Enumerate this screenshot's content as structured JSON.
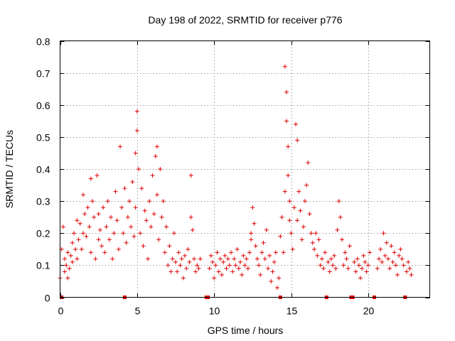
{
  "chart_data": {
    "type": "scatter",
    "title": "Day 198 of 2022, SRMTID for receiver p776",
    "xlabel": "GPS time / hours",
    "ylabel": "SRMTID / TECUs",
    "xlim": [
      0,
      24
    ],
    "ylim": [
      0,
      0.8
    ],
    "xticks": [
      0,
      5,
      10,
      15,
      20
    ],
    "xtick_labels": [
      "0",
      "5",
      "10",
      "15",
      "20"
    ],
    "yticks": [
      0,
      0.1,
      0.2,
      0.3,
      0.4,
      0.5,
      0.6,
      0.7,
      0.8
    ],
    "ytick_labels": [
      "0",
      "0.1",
      "0.2",
      "0.3",
      "0.4",
      "0.5",
      "0.6",
      "0.7",
      "0.8"
    ],
    "grid": true,
    "marker": "+",
    "color": "#e00000",
    "gap_markers_x": [
      0.1,
      4.2,
      9.5,
      9.6,
      14.3,
      17.3,
      18.9,
      19.0,
      20.4,
      22.4
    ],
    "series": [
      {
        "name": "SRMTID",
        "x": [
          0.0,
          0.1,
          0.2,
          0.3,
          0.3,
          0.4,
          0.5,
          0.5,
          0.6,
          0.7,
          0.8,
          0.8,
          0.9,
          1.0,
          1.1,
          1.1,
          1.2,
          1.3,
          1.4,
          1.5,
          1.5,
          1.6,
          1.7,
          1.8,
          1.9,
          2.0,
          2.0,
          2.1,
          2.2,
          2.3,
          2.4,
          2.5,
          2.5,
          2.6,
          2.7,
          2.8,
          2.9,
          3.0,
          3.1,
          3.2,
          3.3,
          3.4,
          3.5,
          3.6,
          3.7,
          3.8,
          3.9,
          4.0,
          4.1,
          4.2,
          4.3,
          4.4,
          4.5,
          4.6,
          4.7,
          4.8,
          4.9,
          4.9,
          5.0,
          5.0,
          5.1,
          5.2,
          5.3,
          5.4,
          5.5,
          5.6,
          5.7,
          5.8,
          5.9,
          6.0,
          6.1,
          6.2,
          6.3,
          6.3,
          6.4,
          6.5,
          6.6,
          6.7,
          6.8,
          6.9,
          7.0,
          7.1,
          7.2,
          7.3,
          7.4,
          7.5,
          7.6,
          7.7,
          7.8,
          7.9,
          8.0,
          8.1,
          8.2,
          8.3,
          8.4,
          8.5,
          8.5,
          8.6,
          8.7,
          8.8,
          8.9,
          9.0,
          9.1,
          9.7,
          9.8,
          9.9,
          10.0,
          10.1,
          10.2,
          10.3,
          10.4,
          10.5,
          10.6,
          10.7,
          10.8,
          10.9,
          11.0,
          11.1,
          11.2,
          11.3,
          11.4,
          11.5,
          11.6,
          11.7,
          11.8,
          11.9,
          12.0,
          12.1,
          12.2,
          12.3,
          12.4,
          12.4,
          12.5,
          12.6,
          12.7,
          12.8,
          12.9,
          13.0,
          13.1,
          13.2,
          13.3,
          13.4,
          13.5,
          13.6,
          13.7,
          13.8,
          13.9,
          14.0,
          14.1,
          14.2,
          14.3,
          14.4,
          14.5,
          14.6,
          14.6,
          14.7,
          14.7,
          14.8,
          14.8,
          14.9,
          14.9,
          15.0,
          15.1,
          15.2,
          15.3,
          15.4,
          15.4,
          15.5,
          15.6,
          15.7,
          15.8,
          15.9,
          16.0,
          16.1,
          16.2,
          16.3,
          16.4,
          16.5,
          16.6,
          16.7,
          16.8,
          16.9,
          17.0,
          17.1,
          17.2,
          17.4,
          17.5,
          17.6,
          17.7,
          17.8,
          17.9,
          18.0,
          18.1,
          18.2,
          18.3,
          18.4,
          18.5,
          18.6,
          18.7,
          18.8,
          19.1,
          19.2,
          19.3,
          19.4,
          19.5,
          19.6,
          19.7,
          19.8,
          19.9,
          20.0,
          20.1,
          20.6,
          20.7,
          20.8,
          20.9,
          21.0,
          21.1,
          21.2,
          21.3,
          21.4,
          21.5,
          21.6,
          21.7,
          21.8,
          21.9,
          22.0,
          22.1,
          22.2,
          22.3,
          22.5,
          22.6,
          22.7,
          22.8
        ],
        "y": [
          0.06,
          0.15,
          0.22,
          0.12,
          0.08,
          0.1,
          0.14,
          0.06,
          0.09,
          0.13,
          0.17,
          0.11,
          0.2,
          0.15,
          0.24,
          0.12,
          0.18,
          0.23,
          0.15,
          0.32,
          0.2,
          0.26,
          0.19,
          0.28,
          0.22,
          0.37,
          0.14,
          0.3,
          0.25,
          0.12,
          0.38,
          0.18,
          0.26,
          0.21,
          0.16,
          0.28,
          0.14,
          0.22,
          0.3,
          0.18,
          0.25,
          0.12,
          0.2,
          0.33,
          0.24,
          0.15,
          0.47,
          0.28,
          0.2,
          0.34,
          0.17,
          0.25,
          0.3,
          0.22,
          0.36,
          0.19,
          0.45,
          0.28,
          0.58,
          0.52,
          0.4,
          0.2,
          0.34,
          0.16,
          0.27,
          0.24,
          0.12,
          0.3,
          0.22,
          0.38,
          0.26,
          0.44,
          0.47,
          0.32,
          0.18,
          0.4,
          0.25,
          0.3,
          0.14,
          0.22,
          0.1,
          0.16,
          0.08,
          0.12,
          0.2,
          0.11,
          0.08,
          0.14,
          0.1,
          0.12,
          0.06,
          0.13,
          0.09,
          0.15,
          0.11,
          0.38,
          0.25,
          0.21,
          0.12,
          0.08,
          0.1,
          0.09,
          0.12,
          0.09,
          0.13,
          0.11,
          0.06,
          0.1,
          0.14,
          0.08,
          0.12,
          0.07,
          0.11,
          0.13,
          0.09,
          0.12,
          0.1,
          0.14,
          0.08,
          0.12,
          0.1,
          0.15,
          0.09,
          0.11,
          0.07,
          0.13,
          0.1,
          0.12,
          0.09,
          0.14,
          0.18,
          0.2,
          0.28,
          0.23,
          0.16,
          0.12,
          0.1,
          0.07,
          0.14,
          0.17,
          0.12,
          0.21,
          0.09,
          0.13,
          0.05,
          0.08,
          0.11,
          0.14,
          0.03,
          0.06,
          0.19,
          0.25,
          0.14,
          0.33,
          0.72,
          0.64,
          0.55,
          0.47,
          0.38,
          0.3,
          0.24,
          0.2,
          0.15,
          0.28,
          0.54,
          0.49,
          0.24,
          0.33,
          0.27,
          0.18,
          0.22,
          0.3,
          0.35,
          0.42,
          0.26,
          0.2,
          0.17,
          0.15,
          0.2,
          0.13,
          0.18,
          0.1,
          0.12,
          0.09,
          0.14,
          0.11,
          0.08,
          0.12,
          0.1,
          0.13,
          0.09,
          0.21,
          0.3,
          0.25,
          0.18,
          0.1,
          0.14,
          0.12,
          0.09,
          0.16,
          0.11,
          0.08,
          0.12,
          0.1,
          0.06,
          0.09,
          0.13,
          0.11,
          0.08,
          0.1,
          0.14,
          0.09,
          0.12,
          0.15,
          0.11,
          0.2,
          0.13,
          0.17,
          0.12,
          0.09,
          0.16,
          0.11,
          0.14,
          0.1,
          0.07,
          0.13,
          0.15,
          0.12,
          0.1,
          0.08,
          0.11,
          0.09,
          0.07
        ]
      }
    ]
  }
}
